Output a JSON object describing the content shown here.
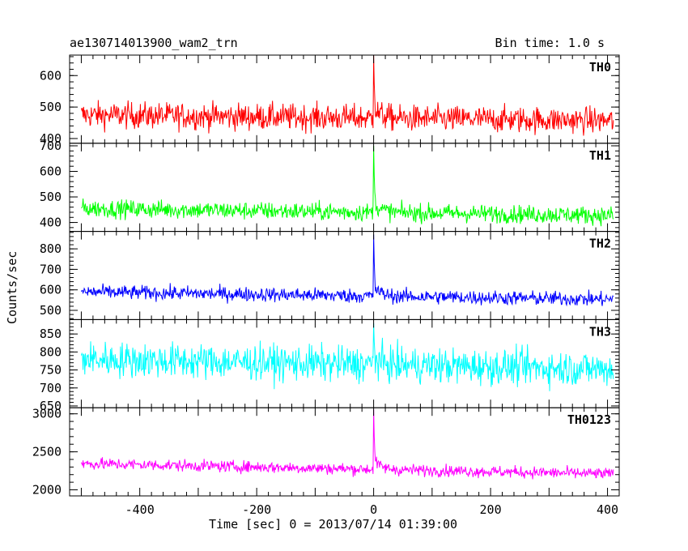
{
  "header": {
    "title": "ae130714013900_wam2_trn",
    "bin_time": "Bin time: 1.0 s"
  },
  "axes": {
    "xlabel": "Time [sec] 0 = 2013/07/14 01:39:00",
    "ylabel": "Counts/sec"
  },
  "colors": {
    "TH0": "#ff0000",
    "TH1": "#00ff00",
    "TH2": "#0000ff",
    "TH3": "#00ffff",
    "TH0123": "#ff00ff"
  },
  "chart_data": {
    "type": "line",
    "xlim": [
      -520,
      420
    ],
    "x_ticks": [
      -400,
      -200,
      0,
      200,
      400
    ],
    "x_range_data": [
      -500,
      410
    ],
    "panels": [
      {
        "name": "TH0",
        "ylim": [
          385,
          665
        ],
        "y_ticks": [
          400,
          500,
          600
        ],
        "baseline": 465,
        "trend": -0.02,
        "noise": 30,
        "peak": 665
      },
      {
        "name": "TH1",
        "ylim": [
          365,
          710
        ],
        "y_ticks": [
          400,
          500,
          600,
          700
        ],
        "baseline": 440,
        "trend": -0.03,
        "noise": 25,
        "peak": 700
      },
      {
        "name": "TH2",
        "ylim": [
          455,
          885
        ],
        "y_ticks": [
          500,
          600,
          700,
          800
        ],
        "baseline": 570,
        "trend": -0.04,
        "noise": 25,
        "peak": 870
      },
      {
        "name": "TH3",
        "ylim": [
          645,
          890
        ],
        "y_ticks": [
          650,
          700,
          750,
          800,
          850
        ],
        "baseline": 765,
        "trend": -0.03,
        "noise": 35,
        "peak": 880
      },
      {
        "name": "TH0123",
        "ylim": [
          1920,
          3080
        ],
        "y_ticks": [
          2000,
          2500,
          3000
        ],
        "baseline": 2270,
        "trend": -0.15,
        "noise": 55,
        "peak": 3060
      }
    ]
  }
}
